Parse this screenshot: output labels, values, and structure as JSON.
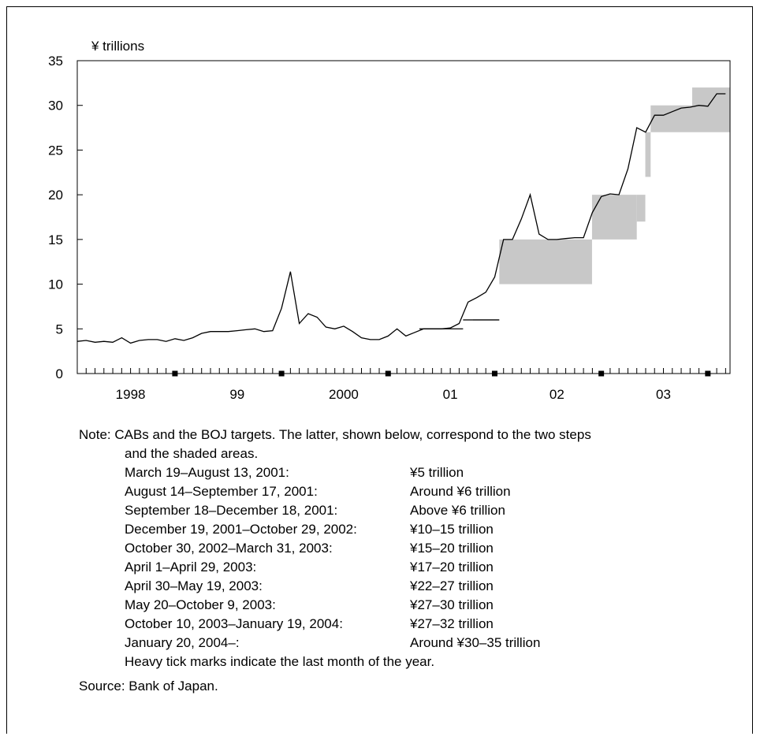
{
  "chart_data": {
    "type": "line",
    "ylabel": "¥ trillions",
    "ylim": [
      0,
      35
    ],
    "yticks": [
      0,
      5,
      10,
      15,
      20,
      25,
      30,
      35
    ],
    "xlim": [
      1998.0,
      2004.125
    ],
    "x_tick_labels": [
      {
        "x": 1998.5,
        "label": "1998"
      },
      {
        "x": 1999.5,
        "label": "99"
      },
      {
        "x": 2000.5,
        "label": "2000"
      },
      {
        "x": 2001.5,
        "label": "01"
      },
      {
        "x": 2002.5,
        "label": "02"
      },
      {
        "x": 2003.5,
        "label": "03"
      }
    ],
    "heavy_ticks_at": [
      1998.875,
      1999.875,
      2000.875,
      2001.875,
      2002.875,
      2003.875
    ],
    "series": [
      {
        "x": [
          1998.0,
          1998.083,
          1998.167,
          1998.25,
          1998.333,
          1998.417,
          1998.5,
          1998.583,
          1998.667,
          1998.75,
          1998.833,
          1998.917,
          1999.0,
          1999.083,
          1999.167,
          1999.25,
          1999.333,
          1999.417,
          1999.5,
          1999.583,
          1999.667,
          1999.75,
          1999.833,
          1999.917,
          2000.0,
          2000.083,
          2000.167,
          2000.25,
          2000.333,
          2000.417,
          2000.5,
          2000.583,
          2000.667,
          2000.75,
          2000.833,
          2000.917,
          2001.0,
          2001.083,
          2001.167,
          2001.25,
          2001.333,
          2001.417,
          2001.5,
          2001.583,
          2001.667,
          2001.75,
          2001.833,
          2001.917,
          2002.0,
          2002.083,
          2002.167,
          2002.25,
          2002.333,
          2002.417,
          2002.5,
          2002.583,
          2002.667,
          2002.75,
          2002.833,
          2002.917,
          2003.0,
          2003.083,
          2003.167,
          2003.25,
          2003.333,
          2003.417,
          2003.5,
          2003.583,
          2003.667,
          2003.75,
          2003.833,
          2003.917,
          2004.0,
          2004.083
        ],
        "values": [
          3.6,
          3.7,
          3.5,
          3.6,
          3.5,
          4.0,
          3.4,
          3.7,
          3.8,
          3.8,
          3.6,
          3.9,
          3.7,
          4.0,
          4.5,
          4.7,
          4.7,
          4.7,
          4.8,
          4.9,
          5.0,
          4.7,
          4.8,
          7.3,
          11.4,
          5.6,
          6.7,
          6.3,
          5.2,
          5.0,
          5.3,
          4.7,
          4.0,
          3.8,
          3.8,
          4.2,
          5.0,
          4.2,
          4.6,
          5.0,
          5.0,
          5.0,
          5.1,
          5.6,
          8.0,
          8.5,
          9.1,
          10.8,
          15.0,
          15.0,
          17.3,
          20.0,
          15.6,
          15.0,
          15.0,
          15.1,
          15.2,
          15.2,
          18.0,
          19.8,
          20.1,
          20.0,
          22.9,
          27.5,
          27.0,
          28.9,
          28.9,
          29.3,
          29.7,
          29.8,
          30.0,
          29.9,
          31.3,
          31.3
        ]
      }
    ],
    "targets": [
      {
        "x0": 2001.21,
        "x1": 2001.62,
        "lo": 5,
        "hi": 5,
        "kind": "step"
      },
      {
        "x0": 2001.62,
        "x1": 2001.71,
        "lo": 6,
        "hi": 6,
        "kind": "step"
      },
      {
        "x0": 2001.71,
        "x1": 2001.96,
        "lo": 6,
        "hi": 6,
        "kind": "step"
      },
      {
        "x0": 2001.96,
        "x1": 2002.83,
        "lo": 10,
        "hi": 15,
        "kind": "shade"
      },
      {
        "x0": 2002.83,
        "x1": 2003.25,
        "lo": 15,
        "hi": 20,
        "kind": "shade"
      },
      {
        "x0": 2003.25,
        "x1": 2003.33,
        "lo": 17,
        "hi": 20,
        "kind": "shade"
      },
      {
        "x0": 2003.33,
        "x1": 2003.38,
        "lo": 22,
        "hi": 27,
        "kind": "shade"
      },
      {
        "x0": 2003.38,
        "x1": 2003.77,
        "lo": 27,
        "hi": 30,
        "kind": "shade"
      },
      {
        "x0": 2003.77,
        "x1": 2004.125,
        "lo": 27,
        "hi": 32,
        "kind": "shade"
      }
    ]
  },
  "note": {
    "intro_line1": "Note: CABs and the BOJ targets. The latter, shown below, correspond to the two steps",
    "intro_line2": "and the shaded areas.",
    "rows": [
      {
        "period": "March 19–August 13, 2001:",
        "target": "¥5 trillion"
      },
      {
        "period": "August 14–September 17, 2001:",
        "target": "Around ¥6 trillion"
      },
      {
        "period": "September 18–December 18, 2001:",
        "target": "Above ¥6 trillion"
      },
      {
        "period": "December 19, 2001–October 29, 2002:",
        "target": "¥10–15 trillion"
      },
      {
        "period": "October 30, 2002–March 31, 2003:",
        "target": "¥15–20 trillion"
      },
      {
        "period": "April 1–April 29, 2003:",
        "target": "¥17–20 trillion"
      },
      {
        "period": "April 30–May 19, 2003:",
        "target": "¥22–27 trillion"
      },
      {
        "period": "May 20–October 9, 2003:",
        "target": "¥27–30 trillion"
      },
      {
        "period": "October 10, 2003–January 19, 2004:",
        "target": "¥27–32 trillion"
      },
      {
        "period": "January 20, 2004–:",
        "target": "Around ¥30–35 trillion"
      }
    ],
    "tick_note": "Heavy tick marks indicate the last month of the year."
  },
  "source": "Source: Bank of Japan.",
  "colors": {
    "shade": "#c8c8c8",
    "line": "#000000"
  }
}
